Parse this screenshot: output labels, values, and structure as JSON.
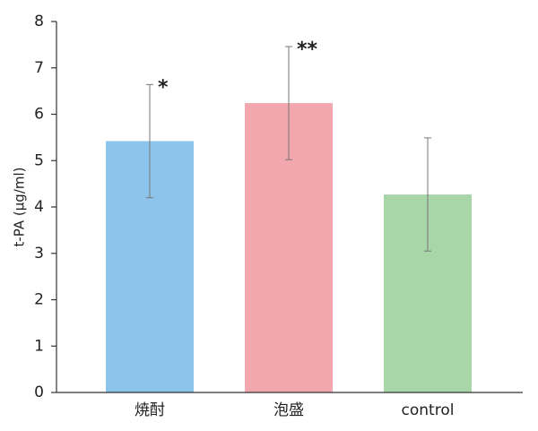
{
  "chart_data": {
    "type": "bar",
    "y_label": "t-PA (μg/ml)",
    "categories": [
      "焼酎",
      "泡盛",
      "control"
    ],
    "values": [
      5.42,
      6.24,
      4.27
    ],
    "errors": [
      1.22,
      1.22,
      1.22
    ],
    "colors": [
      "#8dc4eb",
      "#f2a6ad",
      "#a8d6a9"
    ],
    "annotations": [
      {
        "index": 0,
        "text": "*"
      },
      {
        "index": 1,
        "text": "**"
      }
    ],
    "ylim": [
      0,
      8
    ],
    "yticks": [
      0,
      1,
      2,
      3,
      4,
      5,
      6,
      7,
      8
    ],
    "grid": false
  }
}
